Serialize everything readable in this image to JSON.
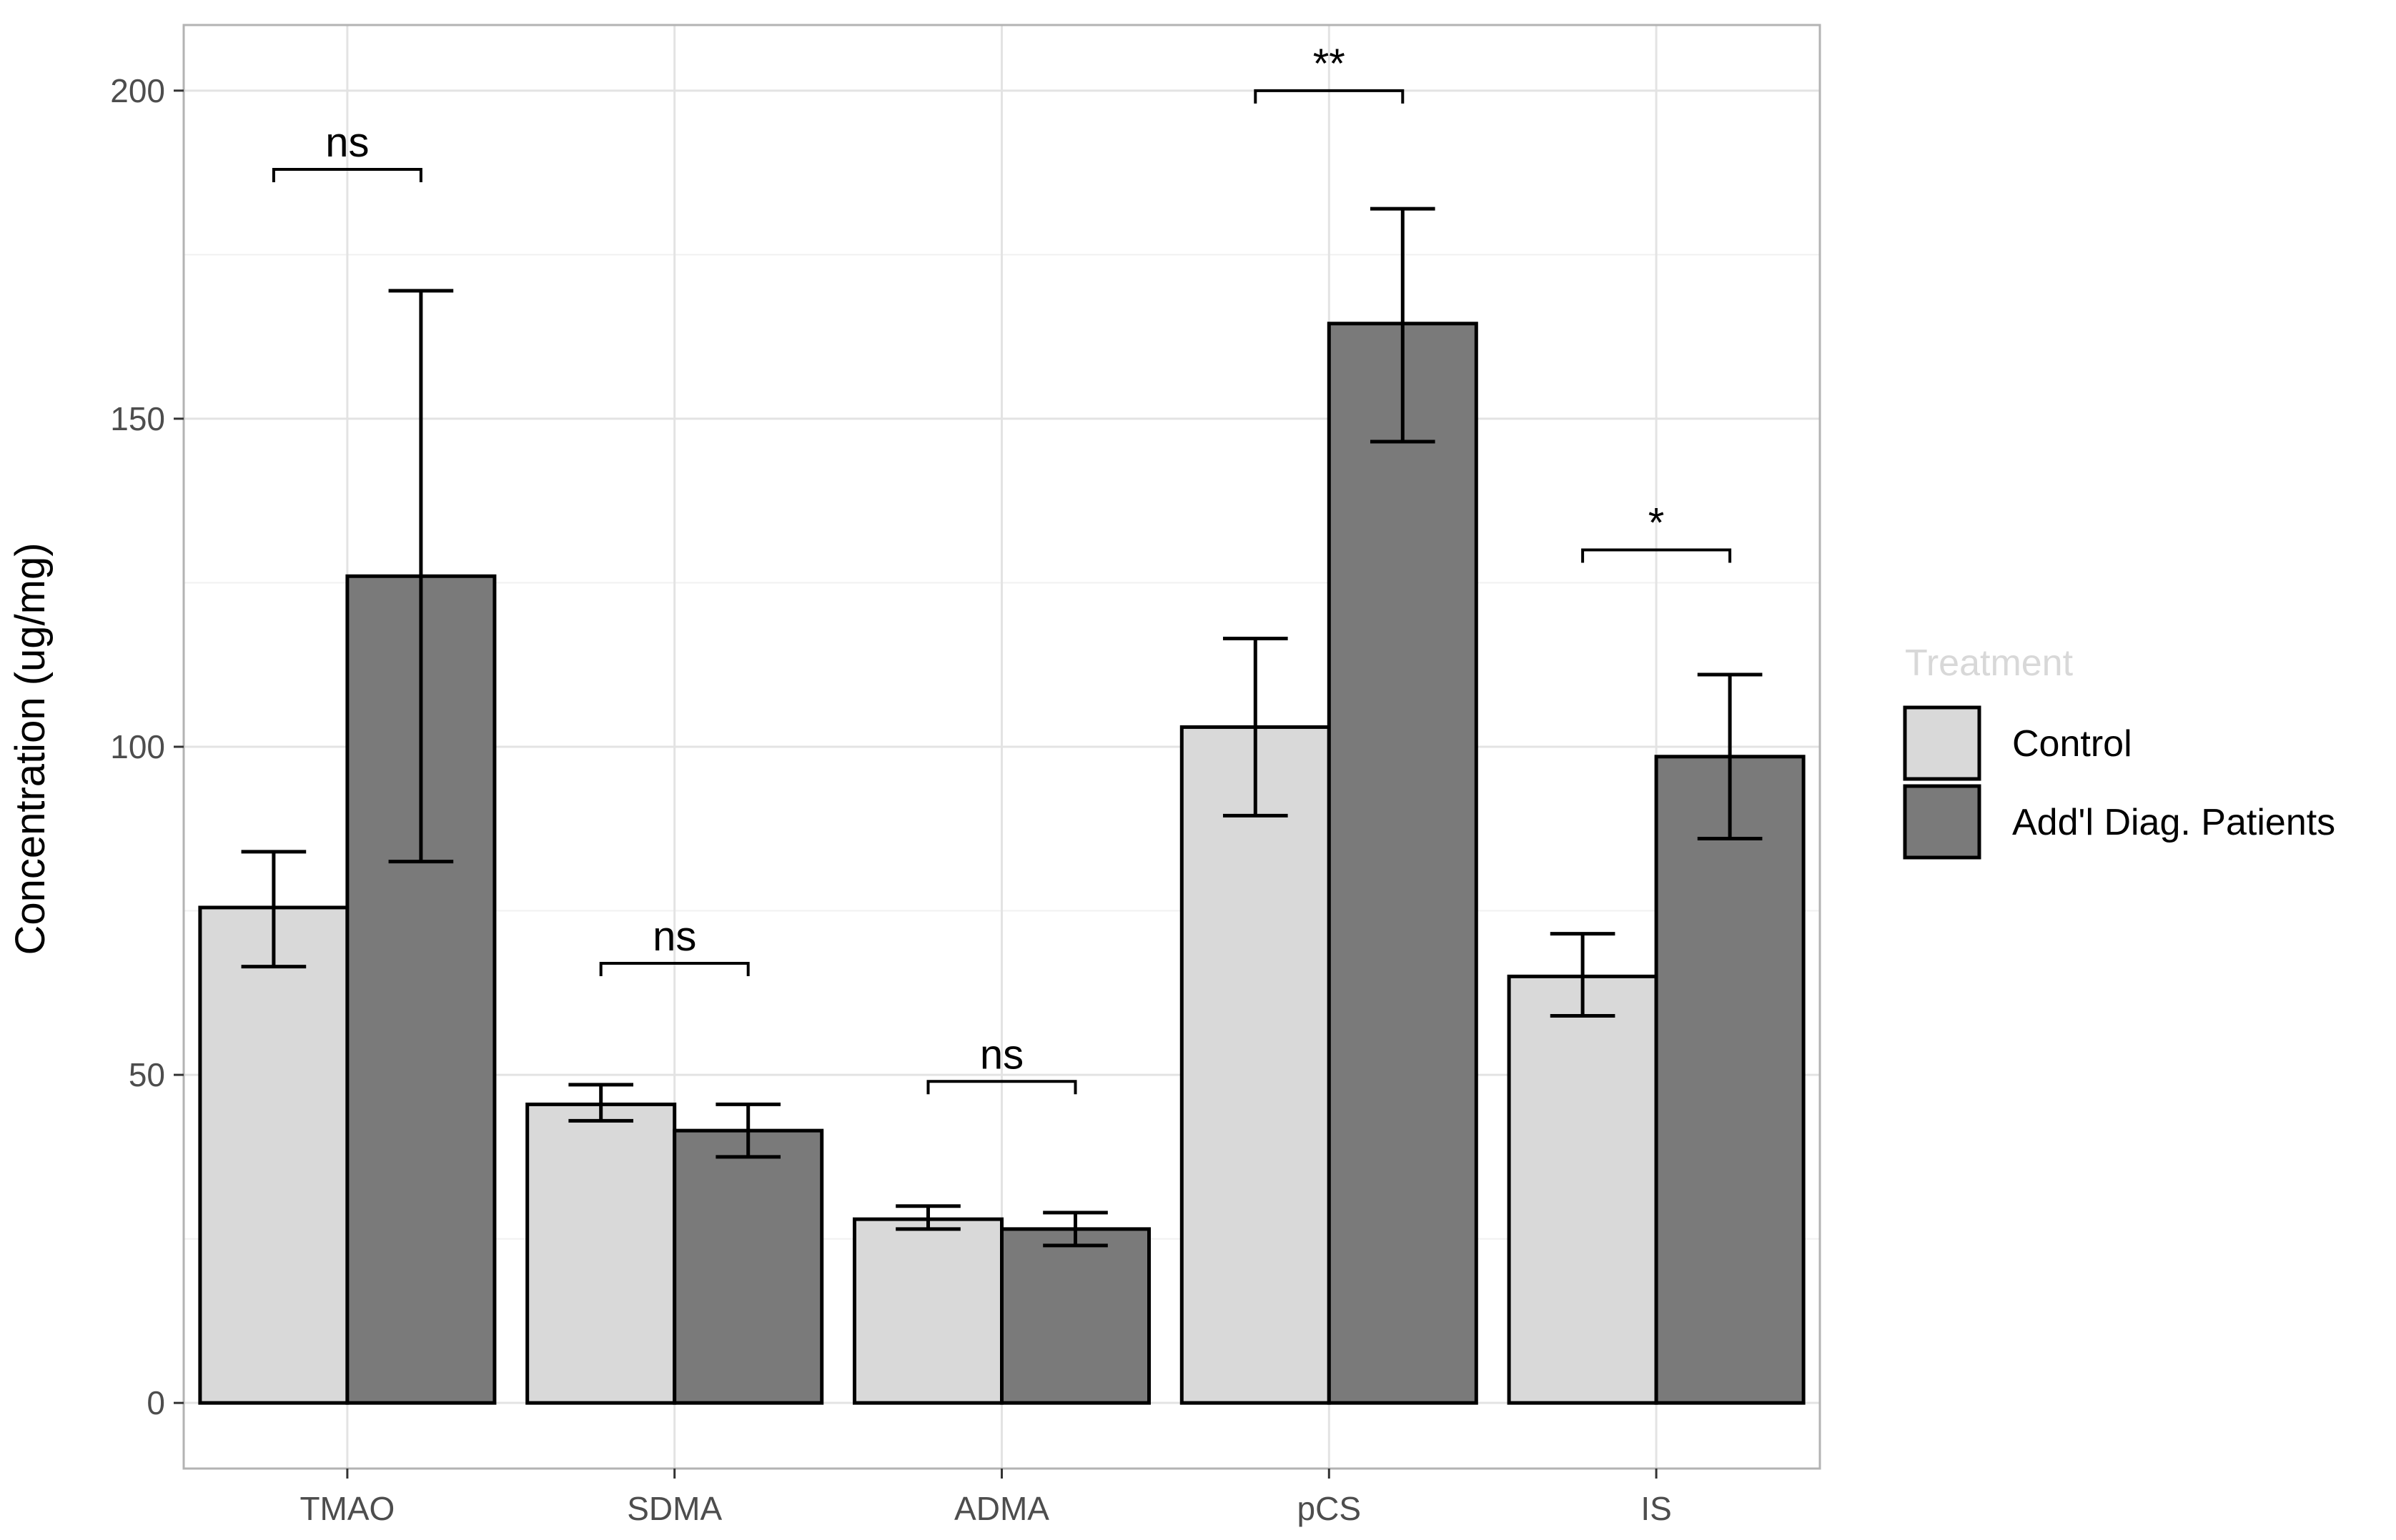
{
  "chart_data": {
    "type": "bar",
    "title": "",
    "xlabel": "",
    "ylabel": "Concentration (ug/mg)",
    "ylim": [
      -10,
      210
    ],
    "yticks": [
      0,
      50,
      100,
      150,
      200
    ],
    "categories": [
      "TMAO",
      "SDMA",
      "ADMA",
      "pCS",
      "IS"
    ],
    "series": [
      {
        "name": "Control",
        "color": "#d9d9d9",
        "values": [
          75.5,
          45.5,
          28,
          103,
          65
        ],
        "error_low": [
          66.5,
          43,
          26.5,
          89.5,
          59
        ],
        "error_high": [
          84,
          48.5,
          30,
          116.5,
          71.5
        ]
      },
      {
        "name": "Add'l Diag. Patients",
        "color": "#7a7a7a",
        "values": [
          126,
          41.5,
          26.5,
          164.5,
          98.5
        ],
        "error_low": [
          82.5,
          37.5,
          24,
          146.5,
          86
        ],
        "error_high": [
          169.5,
          45.5,
          29,
          182,
          111
        ]
      }
    ],
    "significance": [
      {
        "category": "TMAO",
        "label": "ns",
        "y": 188
      },
      {
        "category": "SDMA",
        "label": "ns",
        "y": 67
      },
      {
        "category": "ADMA",
        "label": "ns",
        "y": 49
      },
      {
        "category": "pCS",
        "label": "**",
        "y": 200
      },
      {
        "category": "IS",
        "label": "*",
        "y": 130
      }
    ],
    "legend": {
      "title": "Treatment",
      "position": "right",
      "entries": [
        "Control",
        "Add'l Diag. Patients"
      ]
    },
    "grid": true
  }
}
